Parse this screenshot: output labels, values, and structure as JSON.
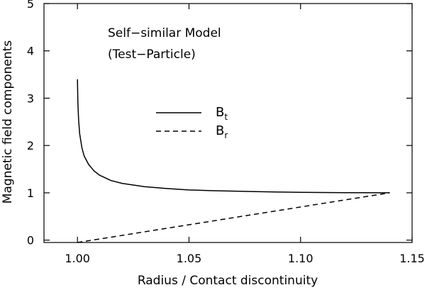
{
  "chart_data": {
    "type": "line",
    "xlabel": "Radius / Contact discontinuity",
    "ylabel": "Magnetic field components",
    "xlim": [
      0.985,
      1.15
    ],
    "ylim": [
      -0.05,
      5.0
    ],
    "x_ticks": [
      1.0,
      1.05,
      1.1,
      1.15
    ],
    "x_tick_labels": [
      "1.00",
      "1.05",
      "1.10",
      "1.15"
    ],
    "y_ticks": [
      0,
      1,
      2,
      3,
      4,
      5
    ],
    "y_tick_labels": [
      "0",
      "1",
      "2",
      "3",
      "4",
      "5"
    ],
    "annotations": [
      "Self−similar Model",
      "(Test−Particle)"
    ],
    "grid": false,
    "legend_position": "center",
    "series": [
      {
        "name_main": "B",
        "name_sub": "t",
        "style": "solid",
        "x": [
          1.0,
          1.0002,
          1.0005,
          1.001,
          1.002,
          1.003,
          1.005,
          1.0075,
          1.01,
          1.015,
          1.02,
          1.03,
          1.04,
          1.05,
          1.06,
          1.08,
          1.1,
          1.12,
          1.14
        ],
        "y": [
          3.4,
          2.9,
          2.55,
          2.25,
          1.95,
          1.78,
          1.6,
          1.46,
          1.37,
          1.26,
          1.2,
          1.13,
          1.09,
          1.06,
          1.045,
          1.025,
          1.01,
          1.003,
          1.0
        ]
      },
      {
        "name_main": "B",
        "name_sub": "r",
        "style": "dashed",
        "x": [
          1.0,
          1.14
        ],
        "y": [
          -0.05,
          1.0
        ]
      }
    ]
  }
}
